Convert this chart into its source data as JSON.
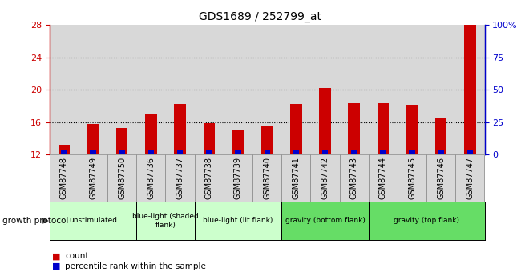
{
  "title": "GDS1689 / 252799_at",
  "samples": [
    "GSM87748",
    "GSM87749",
    "GSM87750",
    "GSM87736",
    "GSM87737",
    "GSM87738",
    "GSM87739",
    "GSM87740",
    "GSM87741",
    "GSM87742",
    "GSM87743",
    "GSM87744",
    "GSM87745",
    "GSM87746",
    "GSM87747"
  ],
  "count_values": [
    13.2,
    15.8,
    15.3,
    17.0,
    18.2,
    15.9,
    15.1,
    15.5,
    18.2,
    20.2,
    18.3,
    18.3,
    18.1,
    16.5,
    28.0
  ],
  "percentile_values": [
    3,
    4,
    3,
    3,
    4,
    3,
    3,
    3,
    4,
    4,
    4,
    4,
    4,
    4,
    4
  ],
  "ylim_left": [
    12,
    28
  ],
  "ylim_right": [
    0,
    100
  ],
  "yticks_left": [
    12,
    16,
    20,
    24,
    28
  ],
  "yticks_right": [
    0,
    25,
    50,
    75,
    100
  ],
  "ytick_labels_right": [
    "0",
    "25",
    "50",
    "75",
    "100%"
  ],
  "groups": [
    {
      "label": "unstimulated",
      "start": 0,
      "end": 3,
      "color": "#ccffcc"
    },
    {
      "label": "blue-light (shaded\nflank)",
      "start": 3,
      "end": 5,
      "color": "#ccffcc"
    },
    {
      "label": "blue-light (lit flank)",
      "start": 5,
      "end": 8,
      "color": "#ccffcc"
    },
    {
      "label": "gravity (bottom flank)",
      "start": 8,
      "end": 11,
      "color": "#66dd66"
    },
    {
      "label": "gravity (top flank)",
      "start": 11,
      "end": 15,
      "color": "#66dd66"
    }
  ],
  "bar_color_red": "#cc0000",
  "bar_color_blue": "#0000cc",
  "plot_bg_color": "#d8d8d8",
  "title_color": "#000000",
  "left_axis_color": "#cc0000",
  "right_axis_color": "#0000cc"
}
